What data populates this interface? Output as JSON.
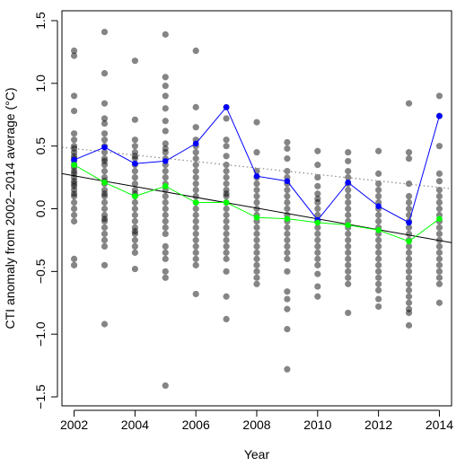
{
  "chart_data": {
    "type": "scatter",
    "title": "",
    "xlabel": "Year",
    "ylabel": "CTI anomaly from 2002−2014 average (°C)",
    "xlim": [
      2001.6,
      2014.4
    ],
    "ylim": [
      -1.5,
      1.5
    ],
    "x_ticks": [
      2002,
      2004,
      2006,
      2008,
      2010,
      2012,
      2014
    ],
    "x_tick_labels": [
      "2002",
      "2004",
      "2006",
      "2008",
      "2010",
      "2012",
      "2014"
    ],
    "y_ticks": [
      -1.5,
      -1.0,
      -0.5,
      0.0,
      0.5,
      1.0,
      1.5
    ],
    "y_tick_labels": [
      "−1.5",
      "−1.0",
      "−0.5",
      "0.0",
      "0.5",
      "1.0",
      "1.5"
    ],
    "colors": {
      "points": "#000000",
      "blue_series": "#0000ff",
      "green_series": "#00ff00",
      "trend": "#000000",
      "dotted_trend": "#888888"
    },
    "points": [
      {
        "year": 2002,
        "values": [
          1.26,
          1.22,
          0.9,
          0.78,
          0.6,
          0.55,
          0.5,
          0.48,
          0.45,
          0.42,
          0.4,
          0.38,
          0.35,
          0.33,
          0.3,
          0.28,
          0.25,
          0.22,
          0.2,
          0.18,
          0.15,
          0.12,
          0.1,
          0.05,
          0.0,
          -0.05,
          -0.1,
          -0.4,
          -0.45
        ]
      },
      {
        "year": 2003,
        "values": [
          1.41,
          1.08,
          0.84,
          0.72,
          0.68,
          0.6,
          0.55,
          0.5,
          0.45,
          0.4,
          0.38,
          0.35,
          0.3,
          0.25,
          0.22,
          0.2,
          0.15,
          0.12,
          0.1,
          0.05,
          0.0,
          -0.05,
          -0.08,
          -0.1,
          -0.15,
          -0.2,
          -0.25,
          -0.3,
          -0.45,
          -0.92
        ]
      },
      {
        "year": 2004,
        "values": [
          1.18,
          0.71,
          0.55,
          0.5,
          0.45,
          0.42,
          0.4,
          0.35,
          0.3,
          0.25,
          0.2,
          0.15,
          0.12,
          0.1,
          0.05,
          0.0,
          -0.05,
          -0.1,
          -0.15,
          -0.18,
          -0.2,
          -0.25,
          -0.3,
          -0.35,
          -0.48
        ]
      },
      {
        "year": 2005,
        "values": [
          1.39,
          1.05,
          0.98,
          0.9,
          0.8,
          0.7,
          0.62,
          0.52,
          0.48,
          0.45,
          0.4,
          0.35,
          0.3,
          0.25,
          0.2,
          0.15,
          0.1,
          0.05,
          0.0,
          -0.05,
          -0.1,
          -0.15,
          -0.2,
          -0.3,
          -0.35,
          -0.4,
          -0.5,
          -0.55,
          -1.41
        ]
      },
      {
        "year": 2006,
        "values": [
          1.26,
          0.81,
          0.65,
          0.55,
          0.5,
          0.45,
          0.4,
          0.35,
          0.3,
          0.25,
          0.2,
          0.15,
          0.1,
          0.05,
          0.0,
          -0.05,
          -0.1,
          -0.15,
          -0.2,
          -0.25,
          -0.3,
          -0.35,
          -0.4,
          -0.45,
          -0.68
        ]
      },
      {
        "year": 2007,
        "values": [
          0.81,
          0.72,
          0.55,
          0.5,
          0.42,
          0.35,
          0.3,
          0.25,
          0.2,
          0.15,
          0.12,
          0.1,
          0.05,
          0.0,
          -0.05,
          -0.1,
          -0.15,
          -0.2,
          -0.25,
          -0.3,
          -0.35,
          -0.4,
          -0.5,
          -0.7,
          -0.88
        ]
      },
      {
        "year": 2008,
        "values": [
          0.69,
          0.45,
          0.3,
          0.25,
          0.2,
          0.15,
          0.1,
          0.05,
          0.0,
          -0.05,
          -0.1,
          -0.15,
          -0.2,
          -0.25,
          -0.3,
          -0.35,
          -0.4,
          -0.45,
          -0.5,
          -0.55,
          -0.6
        ]
      },
      {
        "year": 2009,
        "values": [
          0.53,
          0.48,
          0.4,
          0.3,
          0.25,
          0.2,
          0.15,
          0.1,
          0.05,
          0.0,
          -0.05,
          -0.1,
          -0.15,
          -0.2,
          -0.25,
          -0.3,
          -0.35,
          -0.4,
          -0.5,
          -0.66,
          -0.72,
          -0.8,
          -0.96,
          -1.28
        ]
      },
      {
        "year": 2010,
        "values": [
          0.46,
          0.35,
          0.25,
          0.18,
          0.12,
          0.08,
          0.05,
          0.0,
          -0.05,
          -0.1,
          -0.15,
          -0.2,
          -0.25,
          -0.3,
          -0.35,
          -0.4,
          -0.45,
          -0.52,
          -0.62,
          -0.7
        ]
      },
      {
        "year": 2011,
        "values": [
          0.45,
          0.38,
          0.3,
          0.25,
          0.2,
          0.15,
          0.1,
          0.05,
          0.0,
          -0.05,
          -0.1,
          -0.15,
          -0.2,
          -0.25,
          -0.3,
          -0.35,
          -0.4,
          -0.45,
          -0.5,
          -0.55,
          -0.6,
          -0.83
        ]
      },
      {
        "year": 2012,
        "values": [
          0.46,
          0.28,
          0.2,
          0.15,
          0.1,
          0.05,
          0.0,
          -0.05,
          -0.1,
          -0.15,
          -0.2,
          -0.25,
          -0.3,
          -0.35,
          -0.4,
          -0.45,
          -0.5,
          -0.55,
          -0.6,
          -0.65,
          -0.72,
          -0.78
        ]
      },
      {
        "year": 2013,
        "values": [
          0.84,
          0.45,
          0.4,
          0.2,
          0.1,
          0.05,
          0.0,
          -0.05,
          -0.1,
          -0.15,
          -0.2,
          -0.25,
          -0.3,
          -0.35,
          -0.4,
          -0.45,
          -0.5,
          -0.55,
          -0.6,
          -0.65,
          -0.7,
          -0.75,
          -0.8,
          -0.83,
          -0.93
        ]
      },
      {
        "year": 2014,
        "values": [
          0.9,
          0.74,
          0.5,
          0.28,
          0.22,
          0.15,
          0.1,
          0.05,
          0.0,
          -0.05,
          -0.1,
          -0.15,
          -0.2,
          -0.25,
          -0.3,
          -0.35,
          -0.4,
          -0.45,
          -0.5,
          -0.55,
          -0.6,
          -0.75
        ]
      }
    ],
    "series": [
      {
        "color": "blue",
        "x": [
          2002,
          2003,
          2004,
          2005,
          2006,
          2007,
          2008,
          2009,
          2010,
          2011,
          2012,
          2013,
          2014
        ],
        "values": [
          0.39,
          0.49,
          0.36,
          0.38,
          0.52,
          0.81,
          0.26,
          0.22,
          -0.09,
          0.21,
          0.02,
          -0.11,
          0.74
        ]
      },
      {
        "color": "green",
        "x": [
          2002,
          2003,
          2004,
          2005,
          2006,
          2007,
          2008,
          2009,
          2010,
          2011,
          2012,
          2013,
          2014
        ],
        "values": [
          0.35,
          0.21,
          0.1,
          0.18,
          0.05,
          0.05,
          -0.07,
          -0.08,
          -0.11,
          -0.13,
          -0.17,
          -0.26,
          -0.08
        ]
      }
    ],
    "trend_lines": [
      {
        "style": "solid",
        "x": [
          2001.6,
          2014.4
        ],
        "values": [
          0.28,
          -0.27
        ]
      },
      {
        "style": "dotted",
        "x": [
          2001.6,
          2014.4
        ],
        "values": [
          0.49,
          0.16
        ]
      }
    ]
  }
}
